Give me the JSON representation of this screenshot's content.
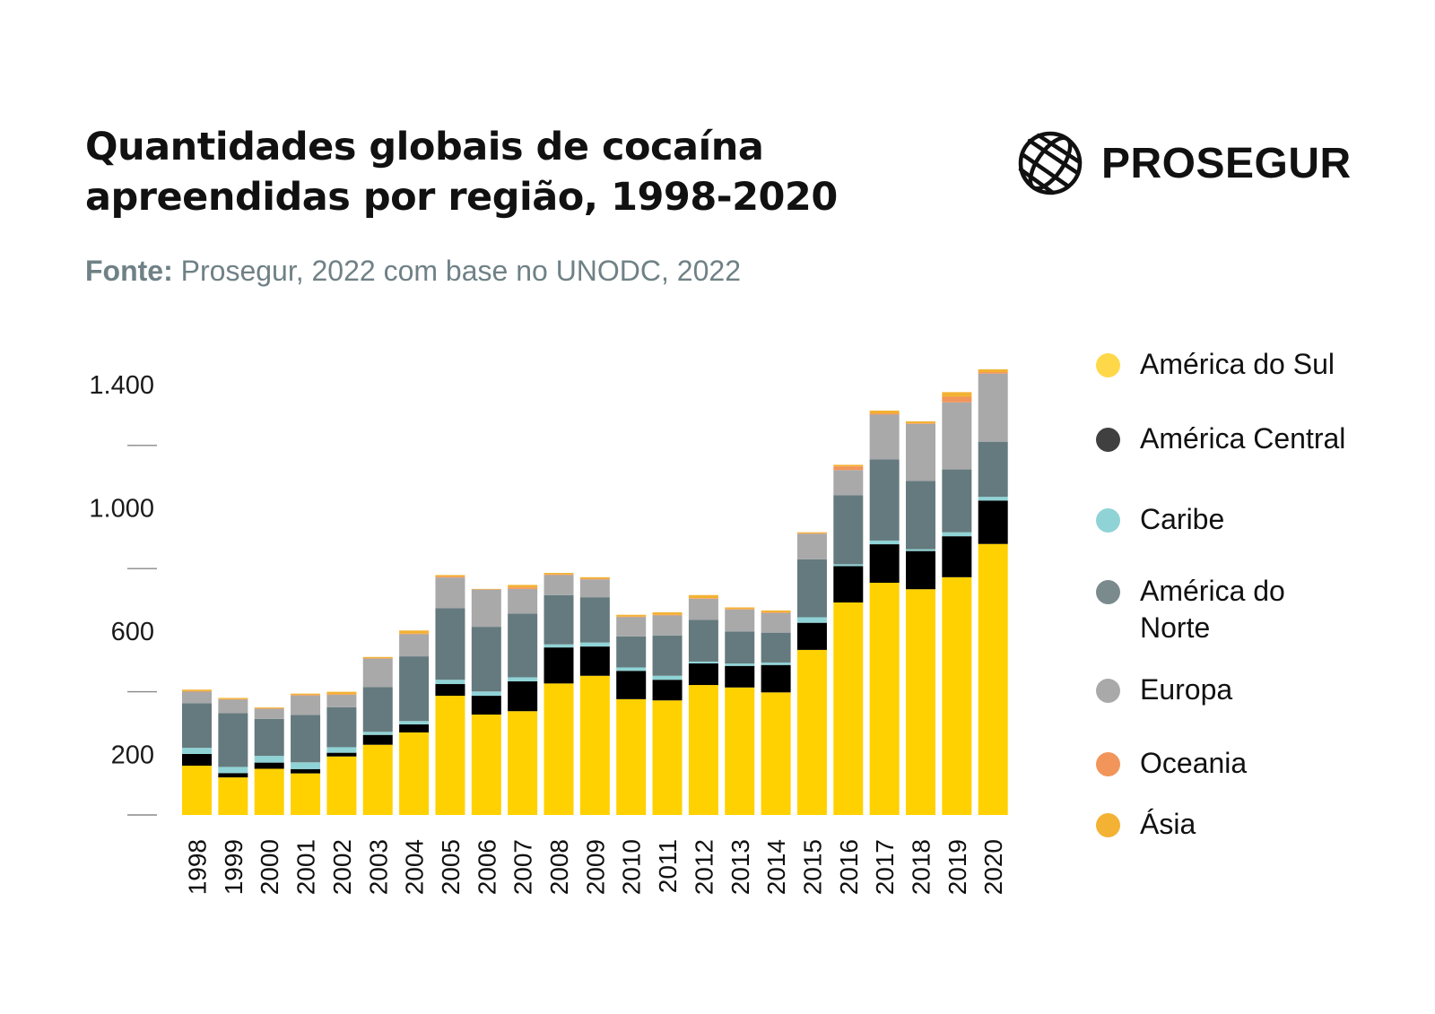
{
  "header": {
    "title_line1": "Quantidades globais de cocaína",
    "title_line2": "apreendidas por região, 1998-2020",
    "source_label": "Fonte:",
    "source_text": " Prosegur, 2022 com base no UNODC, 2022"
  },
  "brand": {
    "logo_text": "PROSEGUR",
    "logo_icon": "globe-icon"
  },
  "colors": {
    "america_do_sul": "#ffd100",
    "america_central": "#000000",
    "caribe": "#8fd3d6",
    "america_do_norte": "#657a7e",
    "europa": "#a9a9a9",
    "oceania": "#f2955a",
    "asia": "#f3b233",
    "legend_america_central": "#404040",
    "legend_america_do_norte": "#7a8a8d",
    "legend_america_do_sul": "#ffd84a",
    "tick_color": "#888888"
  },
  "legend": [
    {
      "label": "América do Sul",
      "color_key": "legend_america_do_sul"
    },
    {
      "label": "América Central",
      "color_key": "legend_america_central"
    },
    {
      "label": "Caribe",
      "color_key": "caribe"
    },
    {
      "label": "América do\nNorte",
      "color_key": "legend_america_do_norte"
    },
    {
      "label": "Europa",
      "color_key": "europa"
    },
    {
      "label": "Oceania",
      "color_key": "oceania"
    },
    {
      "label": "Ásia",
      "color_key": "asia"
    }
  ],
  "chart_data": {
    "type": "bar",
    "stacked": true,
    "title": "Quantidades globais de cocaína apreendidas por região, 1998-2020",
    "xlabel": "",
    "ylabel": "",
    "ylim": [
      0,
      1400
    ],
    "y_tick_labels": [
      {
        "value": 200,
        "label": "200"
      },
      {
        "value": 600,
        "label": "600"
      },
      {
        "value": 1000,
        "label": "1.000"
      },
      {
        "value": 1400,
        "label": "1.400"
      }
    ],
    "y_tick_marks": [
      0,
      400,
      800,
      1200
    ],
    "grid": false,
    "legend_position": "right",
    "categories": [
      "1998",
      "1999",
      "2000",
      "2001",
      "2002",
      "2003",
      "2004",
      "2005",
      "2006",
      "2007",
      "2008",
      "2009",
      "2010",
      "2011",
      "2012",
      "2013",
      "2014",
      "2015",
      "2016",
      "2017",
      "2018",
      "2019",
      "2020"
    ],
    "series": [
      {
        "name": "América do Sul",
        "color_key": "america_do_sul",
        "values": [
          160,
          122,
          150,
          135,
          190,
          228,
          268,
          387,
          326,
          337,
          427,
          452,
          376,
          372,
          422,
          414,
          398,
          536,
          690,
          754,
          733,
          772,
          880
        ]
      },
      {
        "name": "América Central",
        "color_key": "america_central",
        "values": [
          38,
          14,
          20,
          14,
          12,
          32,
          26,
          38,
          61,
          97,
          117,
          95,
          92,
          67,
          70,
          70,
          89,
          88,
          118,
          125,
          124,
          133,
          141
        ]
      },
      {
        "name": "Caribe",
        "color_key": "caribe",
        "values": [
          20,
          20,
          22,
          22,
          18,
          10,
          11,
          14,
          14,
          13,
          10,
          13,
          11,
          13,
          6,
          8,
          8,
          18,
          6,
          12,
          6,
          13,
          12
        ]
      },
      {
        "name": "América do Norte",
        "color_key": "america_do_norte",
        "values": [
          145,
          175,
          120,
          154,
          130,
          145,
          210,
          232,
          210,
          207,
          160,
          147,
          101,
          131,
          136,
          104,
          97,
          188,
          224,
          264,
          222,
          204,
          179
        ]
      },
      {
        "name": "Europa",
        "color_key": "europa",
        "values": [
          38,
          44,
          33,
          63,
          40,
          93,
          72,
          100,
          121,
          80,
          65,
          58,
          63,
          65,
          68,
          71,
          64,
          83,
          82,
          145,
          185,
          218,
          221
        ]
      },
      {
        "name": "Oceania",
        "color_key": "oceania",
        "values": [
          1,
          1,
          1,
          2,
          2,
          1,
          2,
          3,
          1,
          5,
          2,
          2,
          1,
          2,
          2,
          2,
          2,
          2,
          12,
          4,
          2,
          18,
          5
        ]
      },
      {
        "name": "Ásia",
        "color_key": "asia",
        "values": [
          5,
          4,
          3,
          4,
          8,
          4,
          10,
          5,
          1,
          8,
          5,
          5,
          6,
          8,
          10,
          5,
          6,
          3,
          5,
          9,
          6,
          15,
          9
        ]
      }
    ]
  }
}
